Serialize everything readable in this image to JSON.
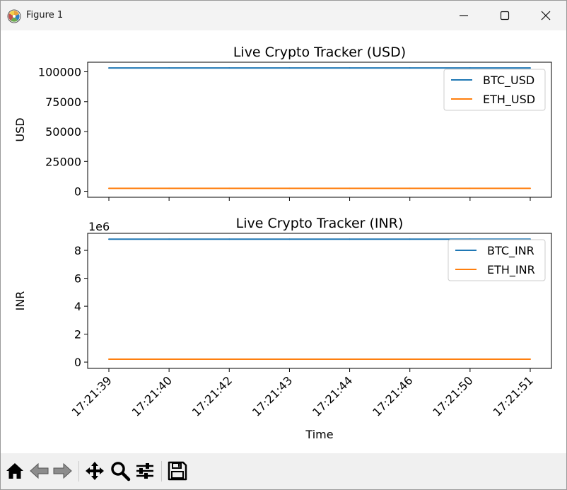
{
  "window": {
    "title": "Figure 1"
  },
  "toolbar": {
    "tools": [
      "home-icon",
      "back-arrow-icon",
      "forward-arrow-icon",
      "pan-icon",
      "zoom-icon",
      "subplots-config-icon",
      "save-icon"
    ]
  },
  "chart_data": [
    {
      "type": "line",
      "title": "Live Crypto Tracker (USD)",
      "xlabel": "",
      "ylabel": "USD",
      "categories": [
        "17:21:39",
        "17:21:40",
        "17:21:42",
        "17:21:43",
        "17:21:44",
        "17:21:46",
        "17:21:50",
        "17:21:51"
      ],
      "ylim": [
        -5000,
        108000
      ],
      "yticks": [
        0,
        25000,
        50000,
        75000,
        100000
      ],
      "ytick_labels": [
        "0",
        "25000",
        "50000",
        "75000",
        "100000"
      ],
      "offset_label": "",
      "legend_position": "upper-right",
      "series": [
        {
          "name": "BTC_USD",
          "color": "#1f77b4",
          "values": [
            103200,
            103200,
            103200,
            103200,
            103200,
            103200,
            103200,
            103200
          ]
        },
        {
          "name": "ETH_USD",
          "color": "#ff7f0e",
          "values": [
            2500,
            2500,
            2500,
            2500,
            2500,
            2500,
            2500,
            2500
          ]
        }
      ]
    },
    {
      "type": "line",
      "title": "Live Crypto Tracker (INR)",
      "xlabel": "Time",
      "ylabel": "INR",
      "categories": [
        "17:21:39",
        "17:21:40",
        "17:21:42",
        "17:21:43",
        "17:21:44",
        "17:21:46",
        "17:21:50",
        "17:21:51"
      ],
      "ylim": [
        -0.45,
        9.22
      ],
      "yticks": [
        0,
        2,
        4,
        6,
        8
      ],
      "ytick_labels": [
        "0",
        "2",
        "4",
        "6",
        "8"
      ],
      "offset_label": "1e6",
      "legend_position": "upper-right",
      "series": [
        {
          "name": "BTC_INR",
          "color": "#1f77b4",
          "values": [
            8.8,
            8.8,
            8.8,
            8.8,
            8.8,
            8.8,
            8.8,
            8.8
          ]
        },
        {
          "name": "ETH_INR",
          "color": "#ff7f0e",
          "values": [
            0.21,
            0.21,
            0.21,
            0.21,
            0.21,
            0.21,
            0.21,
            0.21
          ]
        }
      ]
    }
  ]
}
